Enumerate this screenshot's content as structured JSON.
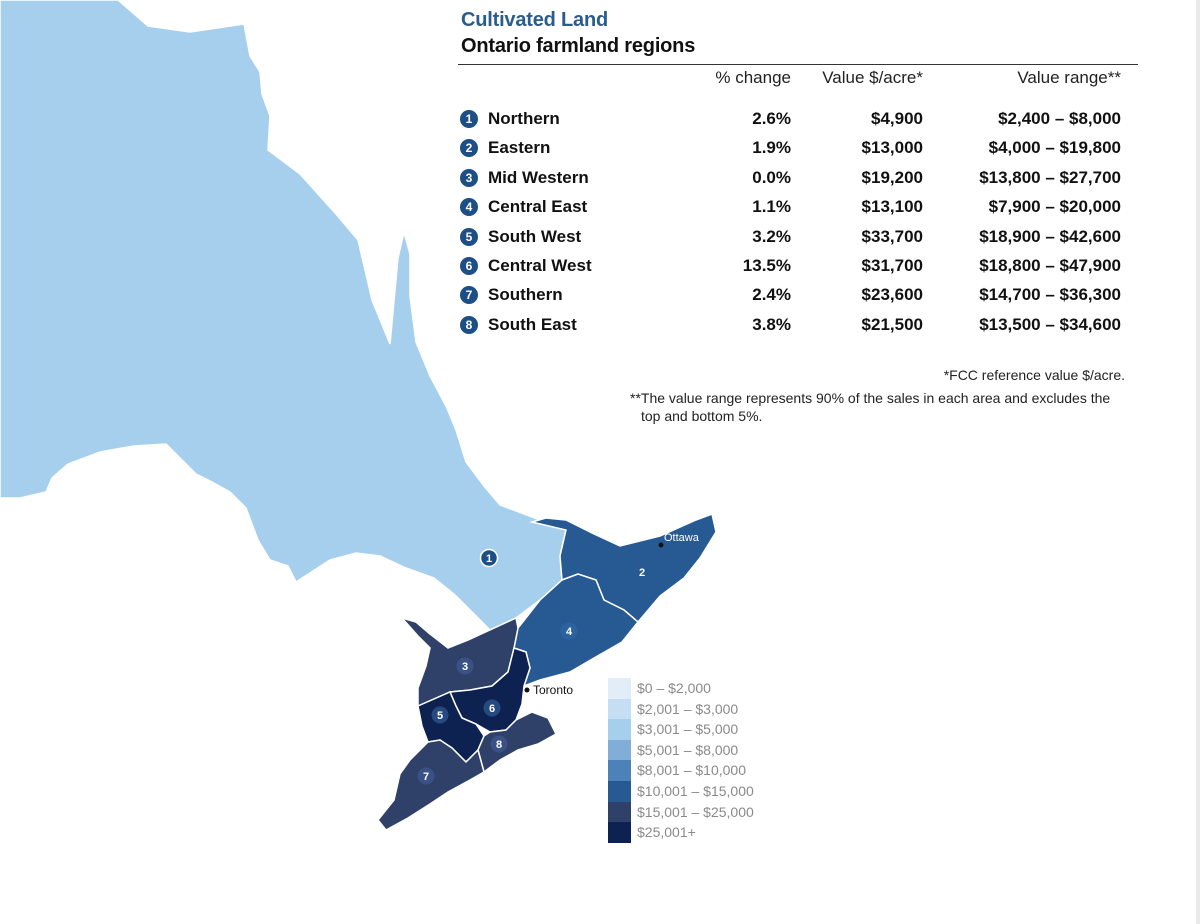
{
  "title": "Cultivated Land",
  "subtitle": "Ontario farmland regions",
  "columns": {
    "change": "% change",
    "value": "Value $/acre*",
    "range": "Value range**"
  },
  "regions": [
    {
      "num": "1",
      "name": "Northern",
      "change": "2.6%",
      "value": "$4,900",
      "range": "$2,400 – $8,000",
      "color": "#a6cfee"
    },
    {
      "num": "2",
      "name": "Eastern",
      "change": "1.9%",
      "value": "$13,000",
      "range": "$4,000 – $19,800",
      "color": "#275a93"
    },
    {
      "num": "3",
      "name": "Mid Western",
      "change": "0.0%",
      "value": "$19,200",
      "range": "$13,800 – $27,700",
      "color": "#2f4168"
    },
    {
      "num": "4",
      "name": "Central East",
      "change": "1.1%",
      "value": "$13,100",
      "range": "$7,900 – $20,000",
      "color": "#275a93"
    },
    {
      "num": "5",
      "name": "South West",
      "change": "3.2%",
      "value": "$33,700",
      "range": "$18,900 – $42,600",
      "color": "#0d2250"
    },
    {
      "num": "6",
      "name": "Central West",
      "change": "13.5%",
      "value": "$31,700",
      "range": "$18,800 – $47,900",
      "color": "#0d2250"
    },
    {
      "num": "7",
      "name": "Southern",
      "change": "2.4%",
      "value": "$23,600",
      "range": "$14,700 – $36,300",
      "color": "#2f4168"
    },
    {
      "num": "8",
      "name": "South East",
      "change": "3.8%",
      "value": "$21,500",
      "range": "$13,500 – $34,600",
      "color": "#2f4168"
    }
  ],
  "notes": {
    "ref": "*FCC reference value $/acre.",
    "range": "**The value range represents 90% of the sales in each area and excludes the top and bottom 5%."
  },
  "cities": {
    "ottawa": "Ottawa",
    "toronto": "Toronto"
  },
  "legend": [
    {
      "label": "$0 – $2,000",
      "color": "#e3edf8"
    },
    {
      "label": "$2,001 – $3,000",
      "color": "#c6def3"
    },
    {
      "label": "$3,001 – $5,000",
      "color": "#a6cfee"
    },
    {
      "label": "$5,001 – $8,000",
      "color": "#80aed6"
    },
    {
      "label": "$8,001 – $10,000",
      "color": "#4d82b8"
    },
    {
      "label": "$10,001 – $15,000",
      "color": "#275a93"
    },
    {
      "label": "$15,001 – $25,000",
      "color": "#2f4168"
    },
    {
      "label": "$25,001+",
      "color": "#0d2250"
    }
  ]
}
